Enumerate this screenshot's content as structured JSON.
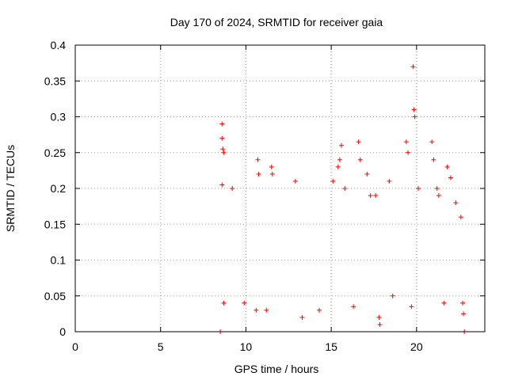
{
  "chart_data": {
    "type": "scatter",
    "title": "Day 170 of 2024, SRMTID for receiver gaia",
    "xlabel": "GPS time / hours",
    "ylabel": "SRMTID / TECUs",
    "xlim": [
      0,
      24
    ],
    "ylim": [
      0,
      0.4
    ],
    "grid": true,
    "marker": "+",
    "color": "#ff0000",
    "x_ticks": [
      0,
      5,
      10,
      15,
      20
    ],
    "x_tick_labels": [
      "0",
      "5",
      "10",
      "15",
      "20"
    ],
    "y_ticks": [
      0,
      0.05,
      0.1,
      0.15,
      0.2,
      0.25,
      0.3,
      0.35,
      0.4
    ],
    "y_tick_labels": [
      "0",
      "0.05",
      "0.1",
      "0.15",
      "0.2",
      "0.25",
      "0.3",
      "0.35",
      "0.4"
    ],
    "series": [
      {
        "name": "SRMTID",
        "points": [
          [
            8.5,
            0.0
          ],
          [
            22.8,
            0.0
          ],
          [
            8.6,
            0.29
          ],
          [
            8.6,
            0.27
          ],
          [
            8.65,
            0.255
          ],
          [
            8.7,
            0.25
          ],
          [
            8.6,
            0.205
          ],
          [
            8.7,
            0.04
          ],
          [
            10.7,
            0.24
          ],
          [
            10.75,
            0.22
          ],
          [
            11.5,
            0.23
          ],
          [
            11.55,
            0.22
          ],
          [
            12.9,
            0.21
          ],
          [
            15.1,
            0.21
          ],
          [
            15.4,
            0.23
          ],
          [
            15.5,
            0.24
          ],
          [
            15.6,
            0.26
          ],
          [
            15.8,
            0.2
          ],
          [
            16.6,
            0.265
          ],
          [
            16.7,
            0.24
          ],
          [
            17.1,
            0.22
          ],
          [
            17.3,
            0.19
          ],
          [
            17.6,
            0.19
          ],
          [
            17.8,
            0.02
          ],
          [
            17.85,
            0.01
          ],
          [
            18.4,
            0.21
          ],
          [
            19.4,
            0.265
          ],
          [
            19.5,
            0.25
          ],
          [
            19.8,
            0.37
          ],
          [
            19.85,
            0.31
          ],
          [
            19.9,
            0.3
          ],
          [
            20.1,
            0.2
          ],
          [
            20.9,
            0.265
          ],
          [
            21.0,
            0.24
          ],
          [
            21.2,
            0.2
          ],
          [
            21.3,
            0.19
          ],
          [
            21.8,
            0.23
          ],
          [
            22.0,
            0.215
          ],
          [
            22.3,
            0.18
          ],
          [
            22.6,
            0.16
          ],
          [
            22.7,
            0.04
          ],
          [
            22.75,
            0.025
          ],
          [
            9.2,
            0.2
          ],
          [
            9.9,
            0.04
          ],
          [
            10.6,
            0.03
          ],
          [
            11.2,
            0.03
          ],
          [
            13.3,
            0.02
          ],
          [
            14.3,
            0.03
          ],
          [
            16.3,
            0.035
          ],
          [
            18.6,
            0.05
          ],
          [
            19.7,
            0.035
          ],
          [
            21.6,
            0.04
          ]
        ]
      }
    ]
  }
}
